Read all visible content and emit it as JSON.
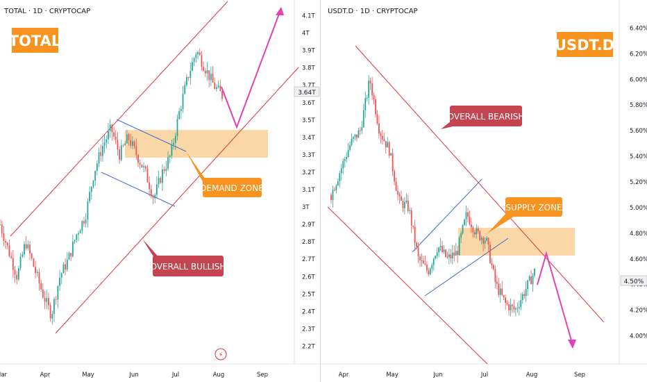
{
  "chart_data": [
    {
      "type": "candlestick",
      "title": "TOTAL · 1D · CRYPTOCAP",
      "badge": "TOTAL",
      "x_ticks": [
        "Mar",
        "Apr",
        "May",
        "Jun",
        "Jul",
        "Aug",
        "Sep"
      ],
      "y_ticks": [
        "4.1T",
        "4T",
        "3.9T",
        "3.8T",
        "3.7T",
        "3.6T",
        "3.5T",
        "3.4T",
        "3.3T",
        "3.2T",
        "3.1T",
        "3T",
        "2.9T",
        "2.8T",
        "2.7T",
        "2.6T",
        "2.5T",
        "2.4T",
        "2.3T",
        "2.2T"
      ],
      "ylim": [
        2.15,
        4.15
      ],
      "price_label": "3.64T",
      "annotations": [
        "DEMAND ZONE",
        "OVERALL BULLISH"
      ],
      "path": [
        {
          "d": "Mar",
          "v": 2.9
        },
        {
          "d": "Mar 8",
          "v": 2.75
        },
        {
          "d": "Mar 15",
          "v": 2.6
        },
        {
          "d": "Mar 22",
          "v": 2.8
        },
        {
          "d": "Mar 30",
          "v": 2.65
        },
        {
          "d": "Apr",
          "v": 2.5
        },
        {
          "d": "Apr 7",
          "v": 2.38
        },
        {
          "d": "Apr 14",
          "v": 2.6
        },
        {
          "d": "Apr 21",
          "v": 2.7
        },
        {
          "d": "Apr 28",
          "v": 2.85
        },
        {
          "d": "May",
          "v": 2.95
        },
        {
          "d": "May 8",
          "v": 3.2
        },
        {
          "d": "May 14",
          "v": 3.35
        },
        {
          "d": "May 21",
          "v": 3.45
        },
        {
          "d": "May 28",
          "v": 3.3
        },
        {
          "d": "Jun",
          "v": 3.4
        },
        {
          "d": "Jun 8",
          "v": 3.3
        },
        {
          "d": "Jun 15",
          "v": 3.2
        },
        {
          "d": "Jun 22",
          "v": 3.05
        },
        {
          "d": "Jun 28",
          "v": 3.2
        },
        {
          "d": "Jul",
          "v": 3.3
        },
        {
          "d": "Jul 8",
          "v": 3.55
        },
        {
          "d": "Jul 14",
          "v": 3.75
        },
        {
          "d": "Jul 20",
          "v": 3.9
        },
        {
          "d": "Jul 26",
          "v": 3.8
        },
        {
          "d": "Jul 30",
          "v": 3.7
        },
        {
          "d": "Aug",
          "v": 3.64
        }
      ]
    },
    {
      "type": "candlestick",
      "title": "USDT.D · 1D · CRYPTOCAP",
      "badge": "USDT.D",
      "x_ticks": [
        "Apr",
        "May",
        "Jun",
        "Jul",
        "Aug",
        "Sep"
      ],
      "y_ticks": [
        "6.40%",
        "6.20%",
        "6.00%",
        "5.80%",
        "5.60%",
        "5.40%",
        "5.20%",
        "5.00%",
        "4.80%",
        "4.60%",
        "4.40%",
        "4.20%",
        "4.00%"
      ],
      "ylim": [
        3.9,
        6.5
      ],
      "price_label": "4.50%",
      "annotations": [
        "OVERALL BEARISH",
        "SUPPLY ZONE"
      ],
      "path": [
        {
          "d": "Mar 10",
          "v": 5.1
        },
        {
          "d": "Mar 20",
          "v": 5.3
        },
        {
          "d": "Mar 28",
          "v": 5.5
        },
        {
          "d": "Apr",
          "v": 5.6
        },
        {
          "d": "Apr 6",
          "v": 6.0
        },
        {
          "d": "Apr 12",
          "v": 5.6
        },
        {
          "d": "Apr 20",
          "v": 5.45
        },
        {
          "d": "Apr 28",
          "v": 5.05
        },
        {
          "d": "May",
          "v": 5.0
        },
        {
          "d": "May 8",
          "v": 4.6
        },
        {
          "d": "May 15",
          "v": 4.5
        },
        {
          "d": "May 22",
          "v": 4.7
        },
        {
          "d": "Jun",
          "v": 4.6
        },
        {
          "d": "Jun 10",
          "v": 4.65
        },
        {
          "d": "Jun 18",
          "v": 4.95
        },
        {
          "d": "Jun 24",
          "v": 4.8
        },
        {
          "d": "Jul",
          "v": 4.75
        },
        {
          "d": "Jul 8",
          "v": 4.4
        },
        {
          "d": "Jul 15",
          "v": 4.25
        },
        {
          "d": "Jul 22",
          "v": 4.2
        },
        {
          "d": "Jul 28",
          "v": 4.35
        },
        {
          "d": "Aug",
          "v": 4.5
        }
      ]
    }
  ]
}
